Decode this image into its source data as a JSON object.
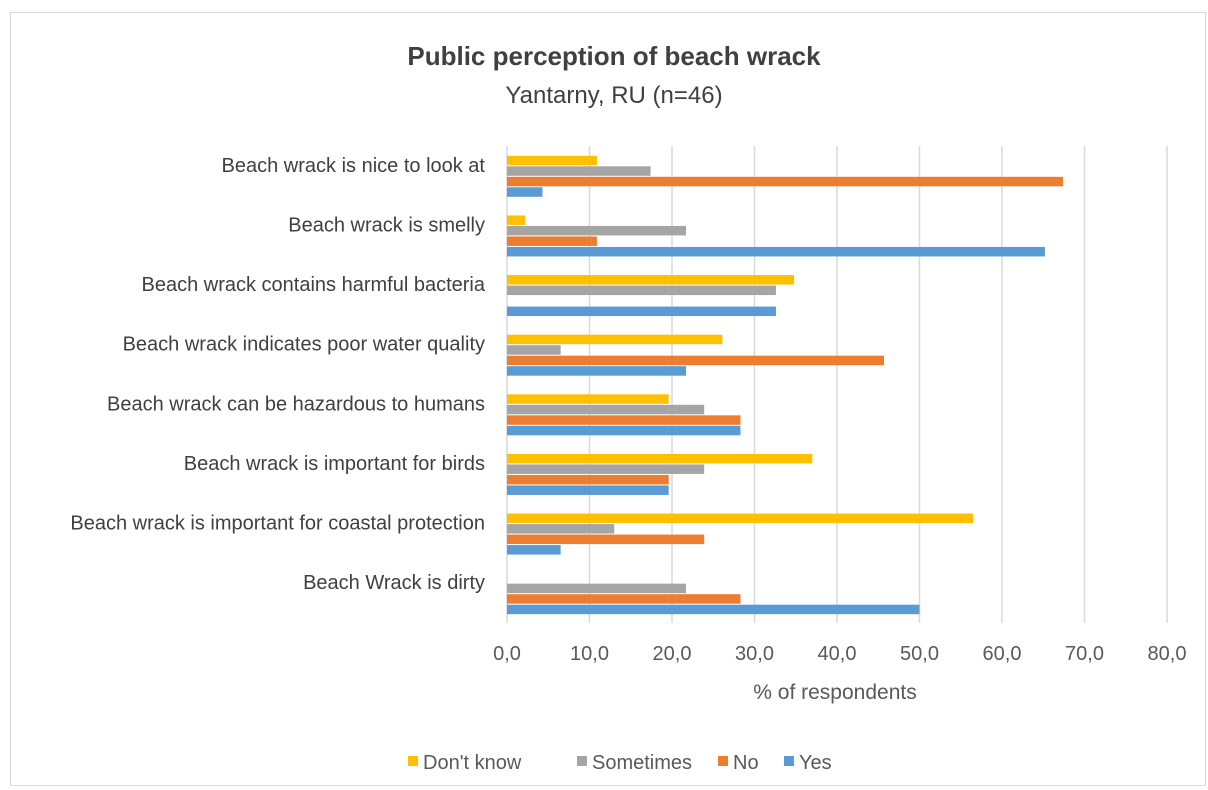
{
  "chart_data": {
    "type": "bar",
    "orientation": "horizontal",
    "title": "Public perception of beach wrack",
    "subtitle": "Yantarny, RU (n=46)",
    "xlabel": "% of respondents",
    "ylabel": "",
    "xlim": [
      0,
      80
    ],
    "xticks": [
      "0,0",
      "10,0",
      "20,0",
      "30,0",
      "40,0",
      "50,0",
      "60,0",
      "70,0",
      "80,0"
    ],
    "grid": "vertical",
    "legend_position": "bottom",
    "categories": [
      "Beach wrack is nice to look at",
      "Beach wrack is smelly",
      "Beach wrack contains harmful bacteria",
      "Beach wrack indicates poor water quality",
      "Beach wrack can be hazardous to humans",
      "Beach wrack is important for birds",
      "Beach wrack is important for coastal protection",
      "Beach Wrack is dirty"
    ],
    "series": [
      {
        "name": "Don't know",
        "color": "#FFC000",
        "values": [
          10.9,
          2.2,
          34.8,
          26.1,
          19.6,
          37.0,
          56.5,
          0.0
        ]
      },
      {
        "name": "Sometimes",
        "color": "#A5A5A5",
        "values": [
          17.4,
          21.7,
          32.6,
          6.5,
          23.9,
          23.9,
          13.0,
          21.7
        ]
      },
      {
        "name": "No",
        "color": "#ED7D31",
        "values": [
          67.4,
          10.9,
          0.0,
          45.7,
          28.3,
          19.6,
          23.9,
          28.3
        ]
      },
      {
        "name": "Yes",
        "color": "#5B9BD5",
        "values": [
          4.3,
          65.2,
          32.6,
          21.7,
          28.3,
          19.6,
          6.5,
          50.0
        ]
      }
    ]
  }
}
